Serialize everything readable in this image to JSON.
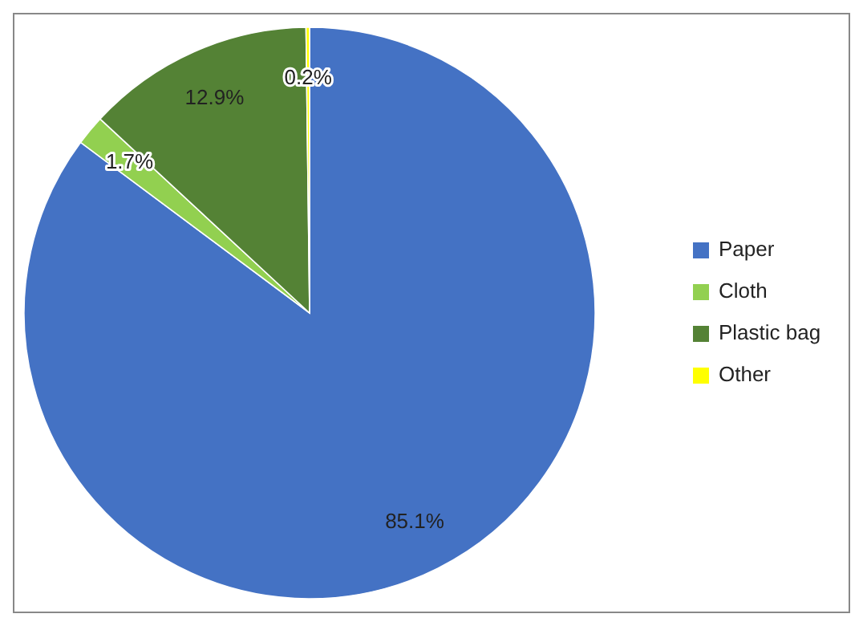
{
  "chart_data": {
    "type": "pie",
    "categories": [
      "Paper",
      "Cloth",
      "Plastic bag",
      "Other"
    ],
    "values": [
      85.1,
      1.7,
      12.9,
      0.2
    ],
    "colors": [
      "#4472c4",
      "#92d050",
      "#548235",
      "#ffff00"
    ],
    "value_labels": [
      "85.1%",
      "1.7%",
      "12.9%",
      "0.2%"
    ],
    "legend": "right"
  }
}
